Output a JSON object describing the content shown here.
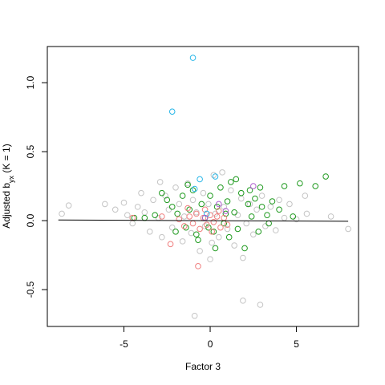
{
  "chart_data": {
    "type": "scatter",
    "x_label": "Factor 3",
    "y_label": [
      "Adjusted b",
      "yx",
      " (K = 1)"
    ],
    "xlim": [
      -9.44,
      8.6
    ],
    "ylim": [
      -0.767,
      1.262
    ],
    "xticks": [
      -5,
      0,
      5
    ],
    "yticks": [
      -0.5,
      {
        "value": 0,
        "label": "0.0"
      },
      0.5,
      {
        "value": 1,
        "label": "1.0"
      }
    ],
    "fit_line": {
      "color": "#000000",
      "x": [
        -8.8,
        8.0
      ],
      "y": [
        0.005,
        -0.005
      ]
    },
    "series": [
      {
        "color": "#c4c4c4",
        "x": [
          -8.6,
          -8.2,
          -6.1,
          -5.5,
          -5.0,
          -4.8,
          -4.5,
          -4.2,
          -4.0,
          -3.8,
          -3.5,
          -3.3,
          -3.0,
          -2.8,
          -2.6,
          -2.4,
          -2.2,
          -2.0,
          -1.8,
          -1.6,
          -1.5,
          -1.3,
          -1.1,
          -1.0,
          -0.9,
          -0.8,
          -0.6,
          -0.4,
          -0.3,
          -0.1,
          0.0,
          0.2,
          0.3,
          0.5,
          0.7,
          0.8,
          1.0,
          1.2,
          1.4,
          1.6,
          1.8,
          1.9,
          2.1,
          2.3,
          2.5,
          2.7,
          2.9,
          3.0,
          3.2,
          3.5,
          3.8,
          4.0,
          4.3,
          4.6,
          5.0,
          5.6,
          5.5,
          7.0,
          8.0,
          1.9,
          0.1,
          -2.9
        ],
        "y": [
          0.05,
          0.11,
          0.12,
          0.08,
          0.13,
          0.04,
          -0.02,
          0.1,
          0.2,
          0.06,
          -0.08,
          0.15,
          0.02,
          -0.12,
          0.18,
          0.08,
          -0.05,
          0.24,
          0.12,
          -0.15,
          0.03,
          0.27,
          -0.09,
          0.15,
          -0.69,
          0.06,
          -0.22,
          0.2,
          -0.04,
          0.12,
          -0.28,
          0.33,
          0.05,
          -0.12,
          0.35,
          0.1,
          -0.06,
          0.22,
          -0.18,
          0.04,
          0.16,
          -0.58,
          -0.02,
          0.12,
          -0.1,
          0.08,
          -0.61,
          0.18,
          -0.04,
          0.1,
          -0.07,
          0.15,
          0.02,
          0.12,
          0.01,
          0.05,
          0.18,
          0.03,
          -0.06,
          -0.27,
          -0.16,
          0.28
        ]
      },
      {
        "color": "#1f9a1f",
        "x": [
          -2.8,
          -2.5,
          -2.2,
          -1.9,
          -1.6,
          -1.4,
          -1.2,
          -1.0,
          -0.8,
          -0.5,
          -0.3,
          0.0,
          0.2,
          0.4,
          0.6,
          0.8,
          1.0,
          1.2,
          1.4,
          1.6,
          1.8,
          2.0,
          2.2,
          2.4,
          2.6,
          2.8,
          3.0,
          3.3,
          3.6,
          4.0,
          4.3,
          4.8,
          5.2,
          6.1,
          6.7,
          0.3,
          -3.2,
          -3.8,
          -4.4,
          -2.0,
          -0.7,
          1.1,
          2.3,
          1.5,
          -1.3,
          0.9,
          -0.1,
          2.9,
          3.4
        ],
        "y": [
          0.2,
          0.15,
          0.1,
          0.05,
          0.18,
          -0.05,
          0.08,
          0.22,
          -0.1,
          0.12,
          0.02,
          0.18,
          -0.08,
          0.1,
          0.24,
          -0.02,
          0.14,
          0.28,
          0.06,
          -0.06,
          0.2,
          -0.2,
          0.12,
          0.03,
          0.16,
          -0.08,
          0.1,
          0.04,
          0.14,
          0.08,
          0.25,
          0.03,
          0.27,
          0.25,
          0.32,
          -0.2,
          0.04,
          0.02,
          0.02,
          -0.08,
          -0.14,
          -0.12,
          0.22,
          0.3,
          0.26,
          0.05,
          -0.05,
          0.24,
          -0.02
        ]
      },
      {
        "color": "#f08080",
        "x": [
          -2.3,
          -0.7,
          -1.8,
          -1.5,
          -1.2,
          -1.0,
          -0.8,
          -0.6,
          -0.4,
          -0.2,
          0.0,
          0.2,
          0.4,
          0.6,
          0.8,
          1.0,
          -0.3,
          0.1,
          -2.8,
          -4.5,
          -1.3,
          0.5
        ],
        "y": [
          -0.17,
          -0.33,
          0.01,
          -0.04,
          0.03,
          -0.02,
          0.05,
          -0.06,
          0.02,
          -0.03,
          0.04,
          -0.01,
          0.03,
          -0.05,
          0.02,
          -0.03,
          0.08,
          -0.08,
          0.03,
          0.02,
          0.09,
          0.07
        ]
      },
      {
        "color": "#2ab7e8",
        "x": [
          -1.0,
          -2.2,
          -0.6,
          -0.9,
          0.3,
          -0.2
        ],
        "y": [
          1.18,
          0.79,
          0.3,
          0.23,
          0.32,
          0.05
        ]
      },
      {
        "color": "#b05ed0",
        "x": [
          2.5,
          0.5,
          -0.3,
          0.9
        ],
        "y": [
          0.25,
          0.12,
          0.02,
          0.07
        ]
      }
    ]
  }
}
